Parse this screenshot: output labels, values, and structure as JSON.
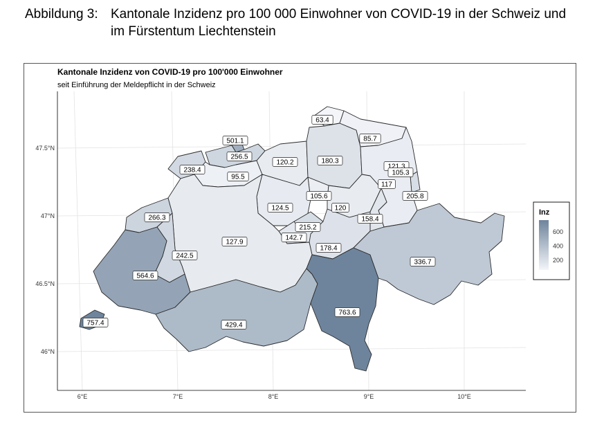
{
  "caption": {
    "label": "Abbildung 3:",
    "line1": "Kantonale Inzidenz pro 100 000 Einwohner von COVID-19 in der Schweiz und",
    "line2": "im Fürstentum Liechtenstein"
  },
  "map": {
    "title": "Kantonale Inzidenz von COVID-19 pro 100'000 Einwohner",
    "subtitle": "seit Einführung der Meldepflicht in der Schweiz",
    "lat_ticks": [
      "47.5°N",
      "47°N",
      "46.5°N",
      "46°N"
    ],
    "lon_ticks": [
      "6°E",
      "7°E",
      "8°E",
      "9°E",
      "10°E"
    ],
    "legend": {
      "title": "Inz",
      "ticks": [
        "600",
        "400",
        "200"
      ],
      "low_color": "#f3f5f9",
      "high_color": "#6e849c"
    },
    "values": [
      {
        "key": "BS",
        "label": "501.1",
        "v": 501.1
      },
      {
        "key": "BL",
        "label": "256.5",
        "v": 256.5
      },
      {
        "key": "SO",
        "label": "95.5",
        "v": 95.5
      },
      {
        "key": "JU",
        "label": "238.4",
        "v": 238.4
      },
      {
        "key": "AG",
        "label": "120.2",
        "v": 120.2
      },
      {
        "key": "ZH",
        "label": "180.3",
        "v": 180.3
      },
      {
        "key": "SH",
        "label": "63.4",
        "v": 63.4
      },
      {
        "key": "TG",
        "label": "85.7",
        "v": 85.7
      },
      {
        "key": "AR",
        "label": "121.3",
        "v": 121.3
      },
      {
        "key": "AI",
        "label": "105.3",
        "v": 105.3
      },
      {
        "key": "SG",
        "label": "117",
        "v": 117
      },
      {
        "key": "FL",
        "label": "205.8",
        "v": 205.8
      },
      {
        "key": "ZG",
        "label": "105.6",
        "v": 105.6
      },
      {
        "key": "SZ",
        "label": "120",
        "v": 120
      },
      {
        "key": "GL",
        "label": "158.4",
        "v": 158.4
      },
      {
        "key": "LU",
        "label": "124.5",
        "v": 124.5
      },
      {
        "key": "NE",
        "label": "266.3",
        "v": 266.3
      },
      {
        "key": "BE",
        "label": "127.9",
        "v": 127.9
      },
      {
        "key": "NW",
        "label": "215.2",
        "v": 215.2
      },
      {
        "key": "OW",
        "label": "142.7",
        "v": 142.7
      },
      {
        "key": "UR",
        "label": "178.4",
        "v": 178.4
      },
      {
        "key": "FR",
        "label": "242.5",
        "v": 242.5
      },
      {
        "key": "VD",
        "label": "564.6",
        "v": 564.6
      },
      {
        "key": "GE",
        "label": "757.4",
        "v": 757.4
      },
      {
        "key": "VS",
        "label": "429.4",
        "v": 429.4
      },
      {
        "key": "TI",
        "label": "763.6",
        "v": 763.6
      },
      {
        "key": "GR",
        "label": "336.7",
        "v": 336.7
      }
    ]
  }
}
